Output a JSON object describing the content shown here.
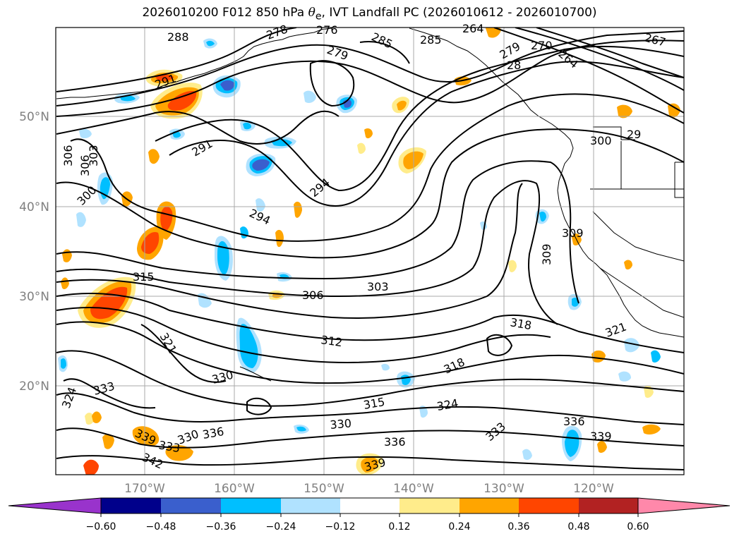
{
  "title": {
    "prefix": "2026010200 F012 850 hPa ",
    "theta": "θ",
    "theta_sub": "e",
    "suffix": ", IVT Landfall PC (2026010612 - 2026010700)"
  },
  "axes": {
    "lat_ticks": [
      "50°N",
      "40°N",
      "30°N",
      "20°N"
    ],
    "lon_ticks": [
      "170°W",
      "160°W",
      "150°W",
      "140°W",
      "130°W",
      "120°W"
    ],
    "grid": true
  },
  "contour_labels": [
    "288",
    "278",
    "276",
    "285",
    "285",
    "264",
    "279",
    "270",
    "264",
    "291",
    "279",
    "28",
    "267",
    "291",
    "300",
    "29",
    "306",
    "306",
    "303",
    "294",
    "300",
    "294",
    "309",
    "309",
    "315",
    "306",
    "303",
    "318",
    "312",
    "321",
    "321",
    "318",
    "330",
    "324",
    "333",
    "315",
    "324",
    "330",
    "336",
    "333",
    "336",
    "339",
    "336",
    "339",
    "342",
    "330",
    "333",
    "339"
  ],
  "colorbar": {
    "colors": [
      "#9933cc",
      "#00008b",
      "#3a5fcd",
      "#00bfff",
      "#b0e2ff",
      "#ffffff",
      "#ffec8b",
      "#ffa500",
      "#ff4500",
      "#b22222",
      "#ff88aa"
    ],
    "tick_labels": [
      "−0.60",
      "−0.48",
      "−0.36",
      "−0.24",
      "−0.12",
      "0.12",
      "0.24",
      "0.36",
      "0.48",
      "0.60"
    ]
  },
  "colors": {
    "land_outline": "#000000",
    "contour": "#000000",
    "grid": "#a9a9a9",
    "tick_label": "#808080"
  }
}
